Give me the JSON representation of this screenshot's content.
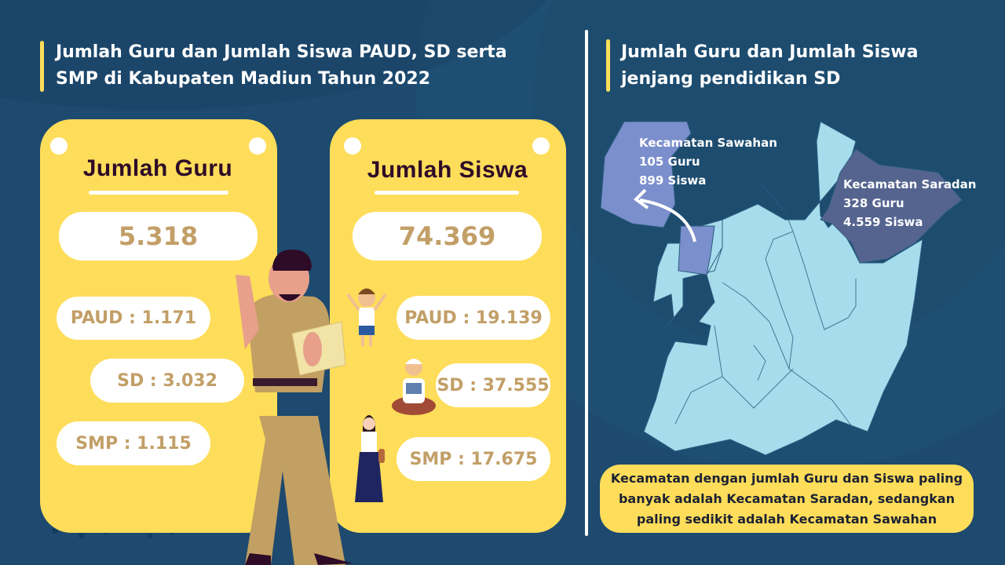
{
  "left_title": {
    "line1": "Jumlah Guru dan Jumlah Siswa PAUD, SD serta",
    "line2": "SMP di Kabupaten Madiun Tahun 2022"
  },
  "right_title": {
    "line1": "Jumlah Guru dan Jumlah Siswa",
    "line2": "jenjang pendidikan SD"
  },
  "guru_card": {
    "title": "Jumlah Guru",
    "total": "5.318",
    "paud": "PAUD : 1.171",
    "sd": "SD : 3.032",
    "smp": "SMP : 1.115"
  },
  "siswa_card": {
    "title": "Jumlah Siswa",
    "total": "74.369",
    "paud": "PAUD : 19.139",
    "sd": "SD : 37.555",
    "smp": "SMP : 17.675"
  },
  "map": {
    "sawahan": {
      "name": "Kecamatan Sawahan",
      "guru": "105 Guru",
      "siswa": "899 Siswa",
      "color": "#7b8fcc"
    },
    "saradan": {
      "name": "Kecamatan Saradan",
      "guru": "328 Guru",
      "siswa": "4.559 Siswa",
      "color": "#55648f"
    },
    "base_color": "#a6dcec"
  },
  "note": {
    "line1": "Kecamatan dengan jumlah Guru dan Siswa paling",
    "line2": "banyak adalah Kecamatan Saradan, sedangkan",
    "line3": "paling sedikit adalah Kecamatan Sawahan"
  },
  "colors": {
    "background": "#1d4a6e",
    "card": "#fedd5a",
    "value_text": "#c29f67",
    "heading_text": "#2e0b27"
  }
}
